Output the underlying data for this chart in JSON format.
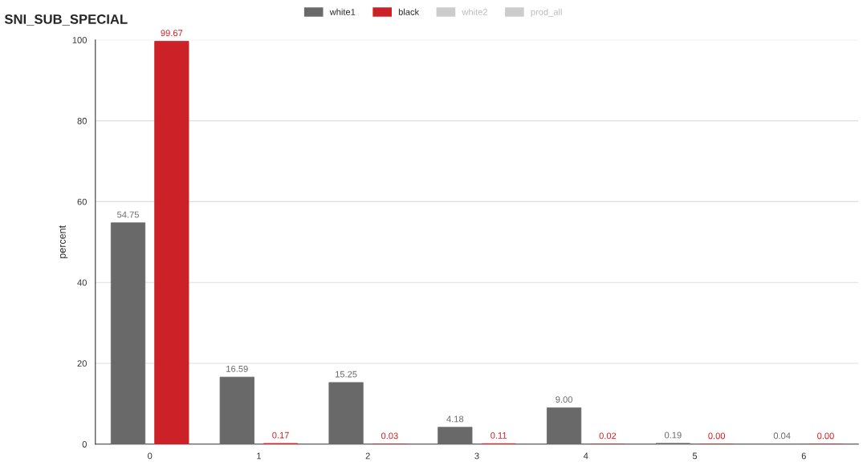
{
  "chart_data": {
    "type": "bar",
    "title": "SNI_SUB_SPECIAL",
    "ylabel": "percent",
    "categories": [
      "0",
      "1",
      "2",
      "3",
      "4",
      "5",
      "6"
    ],
    "series": [
      {
        "name": "white1",
        "color": "#696969",
        "values": [
          54.75,
          16.59,
          15.25,
          4.18,
          9.0,
          0.19,
          0.04
        ],
        "value_labels": [
          "54.75",
          "16.59",
          "15.25",
          "4.18",
          "9.00",
          "0.19",
          "0.04"
        ]
      },
      {
        "name": "black",
        "color": "#cc2127",
        "values": [
          99.67,
          0.17,
          0.03,
          0.11,
          0.02,
          0.0,
          0.0
        ],
        "value_labels": [
          "99.67",
          "0.17",
          "0.03",
          "0.11",
          "0.02",
          "0.00",
          "0.00"
        ]
      },
      {
        "name": "white2",
        "color": "#cccccc",
        "values": [
          null,
          null,
          null,
          null,
          null,
          null,
          null
        ]
      },
      {
        "name": "prod_all",
        "color": "#cccccc",
        "values": [
          null,
          null,
          null,
          null,
          null,
          null,
          null
        ]
      }
    ],
    "ylim": [
      0,
      100
    ],
    "yticks": [
      0,
      20,
      40,
      60,
      80,
      100
    ],
    "grid": "y",
    "legend": "top"
  }
}
